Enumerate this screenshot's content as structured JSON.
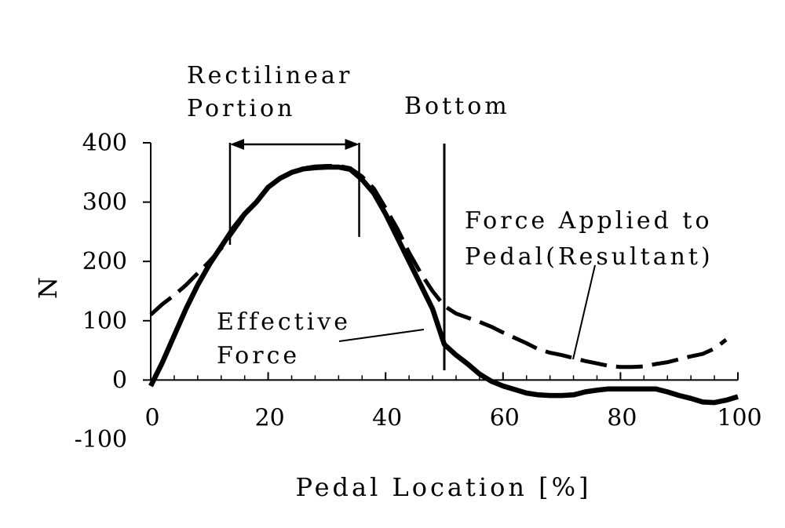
{
  "chart_data": {
    "type": "line",
    "xlabel": "Pedal Location [%]",
    "ylabel": "N",
    "xlim": [
      0,
      100
    ],
    "ylim": [
      -100,
      400
    ],
    "x_ticks": [
      "0",
      "20",
      "40",
      "60",
      "80",
      "100"
    ],
    "y_ticks": [
      "400",
      "300",
      "200",
      "100",
      "0",
      "-100"
    ],
    "grid": false,
    "series": [
      {
        "name": "Effective Force",
        "style": "solid",
        "points": [
          [
            0,
            -10
          ],
          [
            2,
            30
          ],
          [
            4,
            75
          ],
          [
            6,
            120
          ],
          [
            8,
            160
          ],
          [
            10,
            195
          ],
          [
            12,
            225
          ],
          [
            14,
            255
          ],
          [
            16,
            280
          ],
          [
            18,
            300
          ],
          [
            20,
            325
          ],
          [
            22,
            340
          ],
          [
            24,
            350
          ],
          [
            26,
            356
          ],
          [
            28,
            358
          ],
          [
            30,
            359
          ],
          [
            32,
            359
          ],
          [
            34,
            355
          ],
          [
            36,
            338
          ],
          [
            38,
            315
          ],
          [
            40,
            280
          ],
          [
            42,
            240
          ],
          [
            44,
            200
          ],
          [
            46,
            160
          ],
          [
            48,
            120
          ],
          [
            50,
            60
          ],
          [
            52,
            42
          ],
          [
            54,
            27
          ],
          [
            56,
            10
          ],
          [
            58,
            -2
          ],
          [
            60,
            -10
          ],
          [
            62,
            -16
          ],
          [
            64,
            -22
          ],
          [
            66,
            -25
          ],
          [
            68,
            -26
          ],
          [
            70,
            -26
          ],
          [
            72,
            -25
          ],
          [
            74,
            -20
          ],
          [
            76,
            -17
          ],
          [
            78,
            -15
          ],
          [
            80,
            -15
          ],
          [
            82,
            -15
          ],
          [
            84,
            -15
          ],
          [
            86,
            -15
          ],
          [
            88,
            -20
          ],
          [
            90,
            -26
          ],
          [
            92,
            -31
          ],
          [
            94,
            -37
          ],
          [
            96,
            -38
          ],
          [
            98,
            -34
          ],
          [
            100,
            -28
          ]
        ]
      },
      {
        "name": "Force Applied to Pedal(Resultant)",
        "style": "dashed",
        "points": [
          [
            0,
            110
          ],
          [
            2,
            128
          ],
          [
            4,
            143
          ],
          [
            6,
            160
          ],
          [
            8,
            180
          ],
          [
            10,
            200
          ],
          [
            12,
            222
          ],
          [
            14,
            250
          ],
          [
            16,
            278
          ],
          [
            18,
            300
          ],
          [
            20,
            325
          ],
          [
            22,
            340
          ],
          [
            24,
            350
          ],
          [
            26,
            357
          ],
          [
            28,
            360
          ],
          [
            30,
            361
          ],
          [
            32,
            361
          ],
          [
            34,
            357
          ],
          [
            36,
            343
          ],
          [
            38,
            323
          ],
          [
            40,
            290
          ],
          [
            42,
            255
          ],
          [
            44,
            215
          ],
          [
            46,
            180
          ],
          [
            48,
            150
          ],
          [
            50,
            125
          ],
          [
            52,
            112
          ],
          [
            54,
            105
          ],
          [
            56,
            98
          ],
          [
            58,
            90
          ],
          [
            60,
            80
          ],
          [
            62,
            71
          ],
          [
            64,
            62
          ],
          [
            66,
            52
          ],
          [
            68,
            46
          ],
          [
            70,
            42
          ],
          [
            72,
            37
          ],
          [
            74,
            32
          ],
          [
            76,
            28
          ],
          [
            78,
            24
          ],
          [
            80,
            22
          ],
          [
            82,
            22
          ],
          [
            84,
            23
          ],
          [
            86,
            27
          ],
          [
            88,
            30
          ],
          [
            90,
            35
          ],
          [
            92,
            40
          ],
          [
            94,
            44
          ],
          [
            96,
            53
          ],
          [
            98,
            68
          ]
        ]
      }
    ],
    "annotations": {
      "rectilinear_line1": "Rectilinear",
      "rectilinear_line2": "Portion",
      "rectilinear_range_x": [
        13.5,
        35.5
      ],
      "bottom_label": "Bottom",
      "bottom_x": 50,
      "effective_line1": "Effective",
      "effective_line2": "Force",
      "resultant_line1": "Force Applied to",
      "resultant_line2": "Pedal(Resultant)"
    }
  }
}
